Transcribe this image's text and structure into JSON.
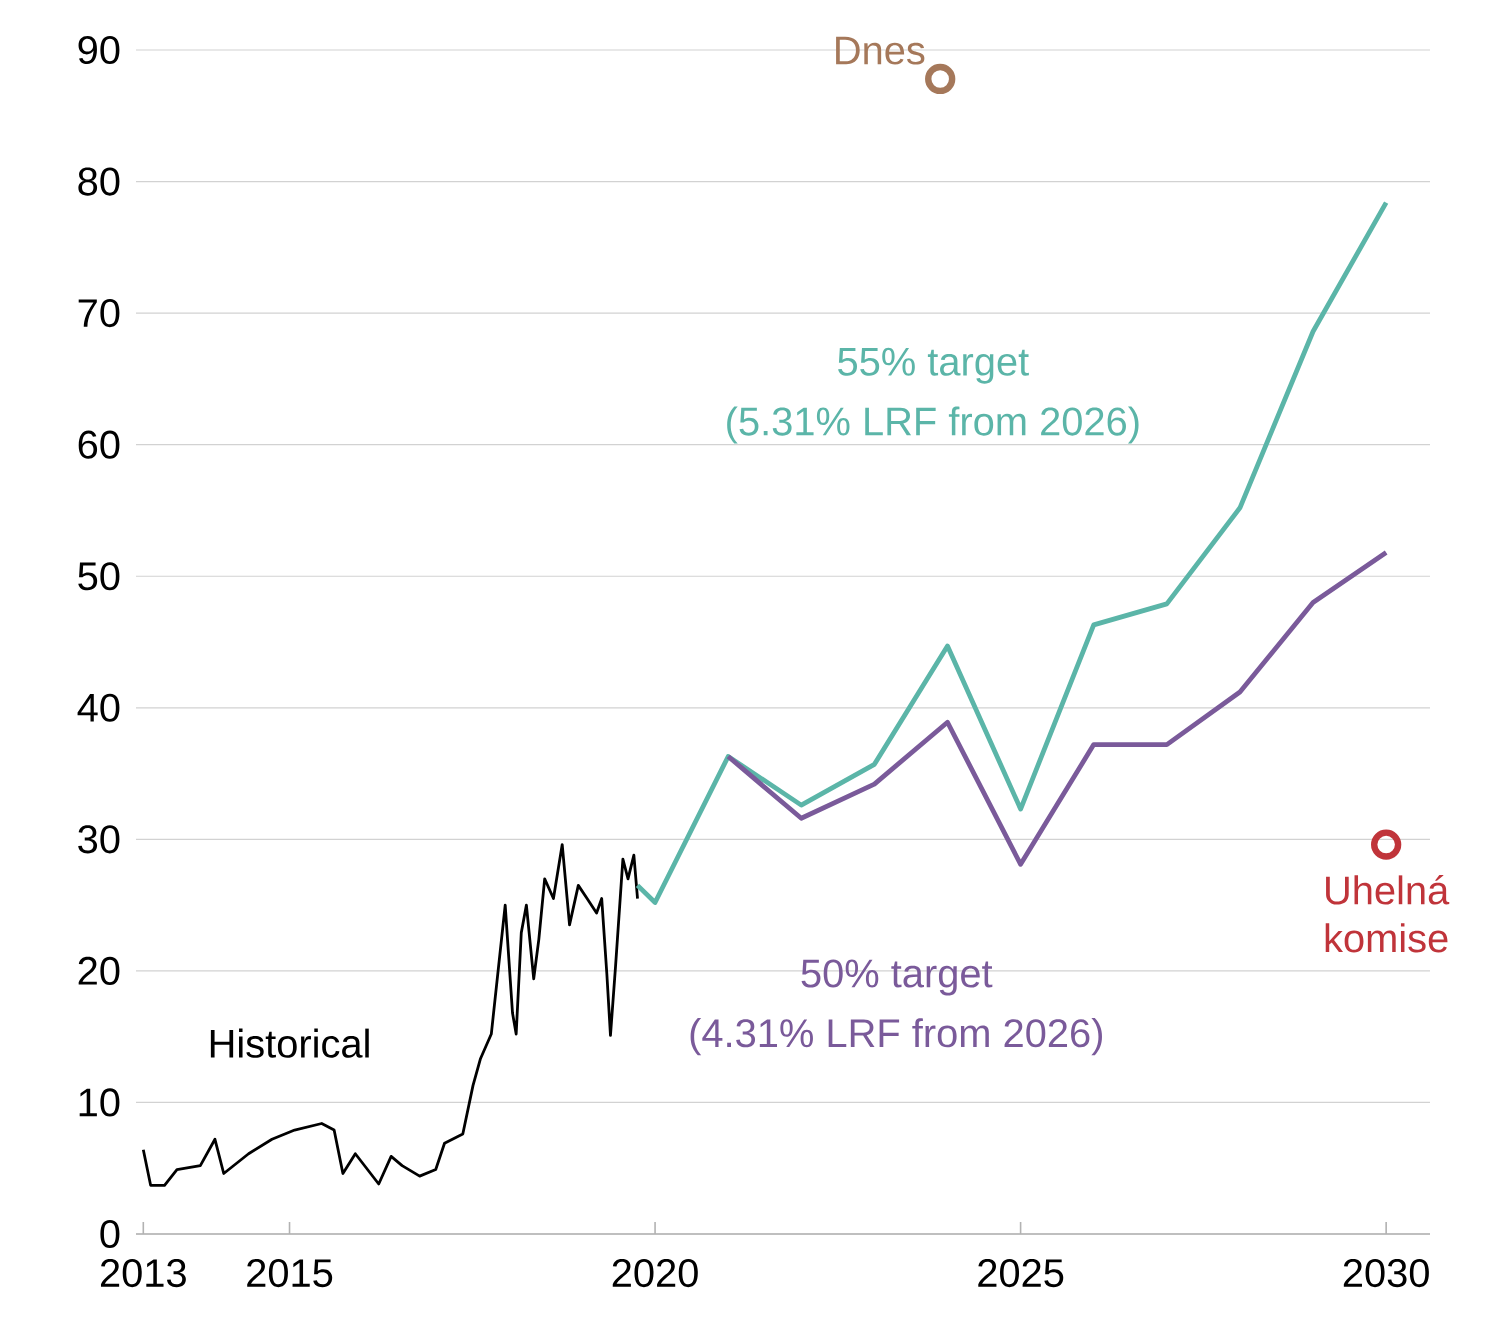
{
  "chart_data": {
    "type": "line",
    "xlim": [
      2012.9,
      2030.6
    ],
    "xticks": [
      2013,
      2015,
      2020,
      2025,
      2030
    ],
    "ylim": [
      0,
      90
    ],
    "yticks": [
      0,
      10,
      20,
      30,
      40,
      50,
      60,
      70,
      80,
      90
    ],
    "grid": "y",
    "legend": false,
    "annotations": [
      "(5.31% LRF from 2026)",
      "(4.31% LRF from 2026)"
    ],
    "series": [
      {
        "name": "Historical",
        "color": "#000000",
        "x": [
          2013.0,
          2013.1,
          2013.29,
          2013.46,
          2013.78,
          2013.98,
          2014.1,
          2014.44,
          2014.76,
          2015.07,
          2015.44,
          2015.61,
          2015.73,
          2015.9,
          2016.22,
          2016.39,
          2016.54,
          2016.78,
          2017.0,
          2017.12,
          2017.37,
          2017.51,
          2017.61,
          2017.76,
          2017.95,
          2018.05,
          2018.1,
          2018.17,
          2018.24,
          2018.34,
          2018.41,
          2018.49,
          2018.61,
          2018.73,
          2018.83,
          2018.95,
          2019.07,
          2019.2,
          2019.27,
          2019.34,
          2019.39,
          2019.46,
          2019.56,
          2019.63,
          2019.71,
          2019.76
        ],
        "values": [
          6.4,
          3.7,
          3.7,
          4.9,
          5.2,
          7.2,
          4.6,
          6.1,
          7.2,
          7.9,
          8.4,
          7.9,
          4.6,
          6.1,
          3.8,
          5.9,
          5.2,
          4.4,
          4.9,
          6.9,
          7.6,
          11.3,
          13.3,
          15.2,
          25,
          16.8,
          15.2,
          22.9,
          25,
          19.4,
          22.4,
          27,
          25.5,
          29.6,
          23.5,
          26.5,
          25.5,
          24.4,
          25.5,
          19.8,
          15.1,
          20.4,
          28.5,
          27,
          28.8,
          25.5
        ]
      },
      {
        "name": "55% target",
        "color": "#5bb5a8",
        "x": [
          2019.76,
          2020,
          2021,
          2022,
          2023,
          2024,
          2025,
          2026,
          2027,
          2028,
          2029,
          2030
        ],
        "values": [
          26.5,
          25.2,
          36.3,
          32.6,
          35.7,
          44.7,
          32.3,
          46.3,
          47.9,
          55.2,
          68.6,
          78.4
        ]
      },
      {
        "name": "50% target",
        "color": "#7a5a9a",
        "x": [
          2021,
          2022,
          2023,
          2024,
          2025,
          2026,
          2027,
          2028,
          2029,
          2030
        ],
        "values": [
          36.3,
          31.6,
          34.2,
          38.9,
          28.1,
          37.2,
          37.2,
          41.2,
          48.0,
          51.8
        ]
      },
      {
        "name": "Dnes",
        "type": "scatter",
        "marker": "circle",
        "color": "#a5785a",
        "x": [
          2023.9
        ],
        "values": [
          87.8
        ]
      },
      {
        "name": "Uhelná komise",
        "type": "scatter",
        "marker": "circle",
        "color": "#c0343a",
        "x": [
          2030
        ],
        "values": [
          29.6
        ]
      }
    ]
  }
}
